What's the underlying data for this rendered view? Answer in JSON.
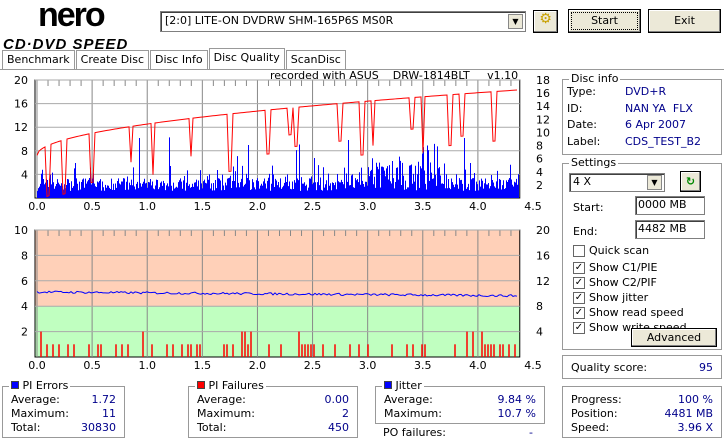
{
  "app": {
    "logo_top": "nero",
    "logo_bottom": "CD·DVD SPEED"
  },
  "toolbar": {
    "drive": "[2:0]  LITE-ON DVDRW SHM-165P6S MS0R",
    "start": "Start",
    "exit": "Exit"
  },
  "tabs": [
    {
      "label": "Benchmark"
    },
    {
      "label": "Create Disc"
    },
    {
      "label": "Disc Info"
    },
    {
      "label": "Disc Quality"
    },
    {
      "label": "ScanDisc"
    }
  ],
  "chart_header": "recorded with ASUS    DRW-1814BLT     v1.10",
  "disc_info": {
    "title": "Disc info",
    "type_l": "Type:",
    "type": "DVD+R",
    "id_l": "ID:",
    "id": "NAN YA  FLX",
    "date_l": "Date:",
    "date": "6 Apr 2007",
    "label_l": "Label:",
    "label": "CDS_TEST_B2"
  },
  "settings": {
    "title": "Settings",
    "speed": "4 X",
    "start_l": "Start:",
    "start": "0000 MB",
    "end_l": "End:",
    "end": "4482 MB",
    "quick": "Quick scan",
    "c1": "Show C1/PIE",
    "c2": "Show C2/PIF",
    "jitter": "Show jitter",
    "read": "Show read speed",
    "write": "Show write speed",
    "advanced": "Advanced"
  },
  "quality": {
    "label": "Quality score:",
    "value": "95"
  },
  "pi_errors": {
    "title": "PI Errors",
    "avg_l": "Average:",
    "avg": "1.72",
    "max_l": "Maximum:",
    "max": "11",
    "tot_l": "Total:",
    "tot": "30830"
  },
  "pi_failures": {
    "title": "PI Failures",
    "avg_l": "Average:",
    "avg": "0.00",
    "max_l": "Maximum:",
    "max": "2",
    "tot_l": "Total:",
    "tot": "450"
  },
  "jitter": {
    "title": "Jitter",
    "avg_l": "Average:",
    "avg": "9.84 %",
    "max_l": "Maximum:",
    "max": "10.7 %",
    "po_l": "PO failures:",
    "po": "-"
  },
  "progress": {
    "prog_l": "Progress:",
    "prog": "100 %",
    "pos_l": "Position:",
    "pos": "4481 MB",
    "spd_l": "Speed:",
    "spd": "3.96 X"
  },
  "colors": {
    "pie": "#0000ff",
    "pif": "#ff0000",
    "speed": "#ff0000",
    "jitter": "#0000ff",
    "bad": "#ffd0b8",
    "good": "#c0ffc0"
  },
  "chart_data": [
    {
      "type": "bar",
      "title": "PI Errors / read speed",
      "xlim": [
        0,
        4.5
      ],
      "data_end": 4.38,
      "ylim_left": [
        0,
        20
      ],
      "ylim_right": [
        0,
        18
      ],
      "xticks": [
        "0.0",
        "0.5",
        "1.0",
        "1.5",
        "2.0",
        "2.5",
        "3.0",
        "3.5",
        "4.0",
        "4.5"
      ],
      "yticks_left": [
        "4",
        "8",
        "12",
        "16",
        "20"
      ],
      "yticks_right": [
        "2",
        "4",
        "6",
        "8",
        "10",
        "12",
        "14",
        "16",
        "18"
      ],
      "pie_avg": 1.72,
      "pie_max": 11,
      "speed_start": 6.5,
      "speed_end": 16.5,
      "speed_dips_gb": [
        0.1,
        0.25,
        0.5,
        0.85,
        1.05,
        1.4,
        1.75,
        2.1,
        2.3,
        2.35,
        2.75,
        2.95,
        3.05,
        3.4,
        3.5,
        3.75,
        3.85,
        4.15
      ]
    },
    {
      "type": "bar",
      "title": "PI Failures / jitter",
      "xlim": [
        0,
        4.5
      ],
      "data_end": 4.38,
      "ylim_left": [
        0,
        10
      ],
      "ylim_right": [
        0,
        20
      ],
      "xticks": [
        "0.0",
        "0.5",
        "1.0",
        "1.5",
        "2.0",
        "2.5",
        "3.0",
        "3.5",
        "4.0",
        "4.5"
      ],
      "yticks_left": [
        "2",
        "4",
        "6",
        "8",
        "10"
      ],
      "yticks_right": [
        "4",
        "8",
        "12",
        "16",
        "20"
      ],
      "pif_max": 2,
      "jitter_avg": 9.84,
      "jitter_max": 10.7,
      "good_threshold_right": 8
    }
  ]
}
